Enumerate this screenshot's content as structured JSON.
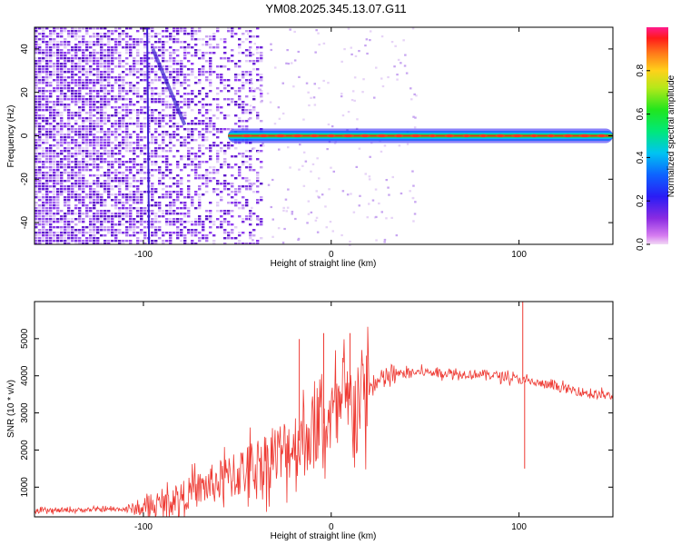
{
  "title": "YM08.2025.345.13.07.G11",
  "chart_data": [
    {
      "type": "heatmap",
      "name": "spectrogram",
      "xlabel": "Height of straight line (km)",
      "ylabel": "Frequency (Hz)",
      "xlim": [
        -158,
        150
      ],
      "ylim": [
        -50,
        50
      ],
      "xticks": [
        -100,
        0,
        100
      ],
      "yticks": [
        -40,
        -20,
        0,
        20,
        40
      ],
      "colorbar": {
        "label": "Normalized spectral amplitude",
        "range": [
          0,
          1
        ],
        "ticks": [
          0.0,
          0.2,
          0.4,
          0.6,
          0.8
        ]
      },
      "features": {
        "noise_region_x": [
          -158,
          -45
        ],
        "carrier_frequency_hz": 0,
        "carrier_start_x": -55,
        "vertical_streak_x": -98,
        "diagonal_streak": {
          "from": [
            -95,
            40
          ],
          "to": [
            -78,
            5
          ]
        }
      }
    },
    {
      "type": "line",
      "name": "snr",
      "xlabel": "Height of straight line (km)",
      "ylabel": "SNR (10 * v/v)",
      "xlim": [
        -158,
        150
      ],
      "ylim": [
        200,
        6000
      ],
      "xticks": [
        -100,
        0,
        100
      ],
      "yticks": [
        1000,
        2000,
        3000,
        4000,
        5000
      ],
      "color": "#ee3a33",
      "series": [
        {
          "name": "SNR",
          "x": [
            -158,
            -140,
            -120,
            -100,
            -90,
            -80,
            -70,
            -60,
            -50,
            -40,
            -30,
            -20,
            -10,
            0,
            10,
            20,
            30,
            40,
            50,
            60,
            70,
            80,
            90,
            100,
            110,
            120,
            130,
            140,
            150
          ],
          "y": [
            350,
            380,
            400,
            420,
            550,
            750,
            950,
            1150,
            1350,
            1600,
            1850,
            2150,
            2500,
            2850,
            3200,
            3650,
            3980,
            4080,
            4100,
            4080,
            4050,
            4050,
            4000,
            3900,
            3800,
            3700,
            3600,
            3500,
            3450
          ]
        }
      ],
      "spikes": [
        {
          "x": -17,
          "y": 4990
        },
        {
          "x": -4,
          "y": 5150
        },
        {
          "x": 10,
          "y": 5150
        },
        {
          "x": 102,
          "y": 6000
        },
        {
          "x": 103,
          "y": 1500
        }
      ]
    }
  ]
}
